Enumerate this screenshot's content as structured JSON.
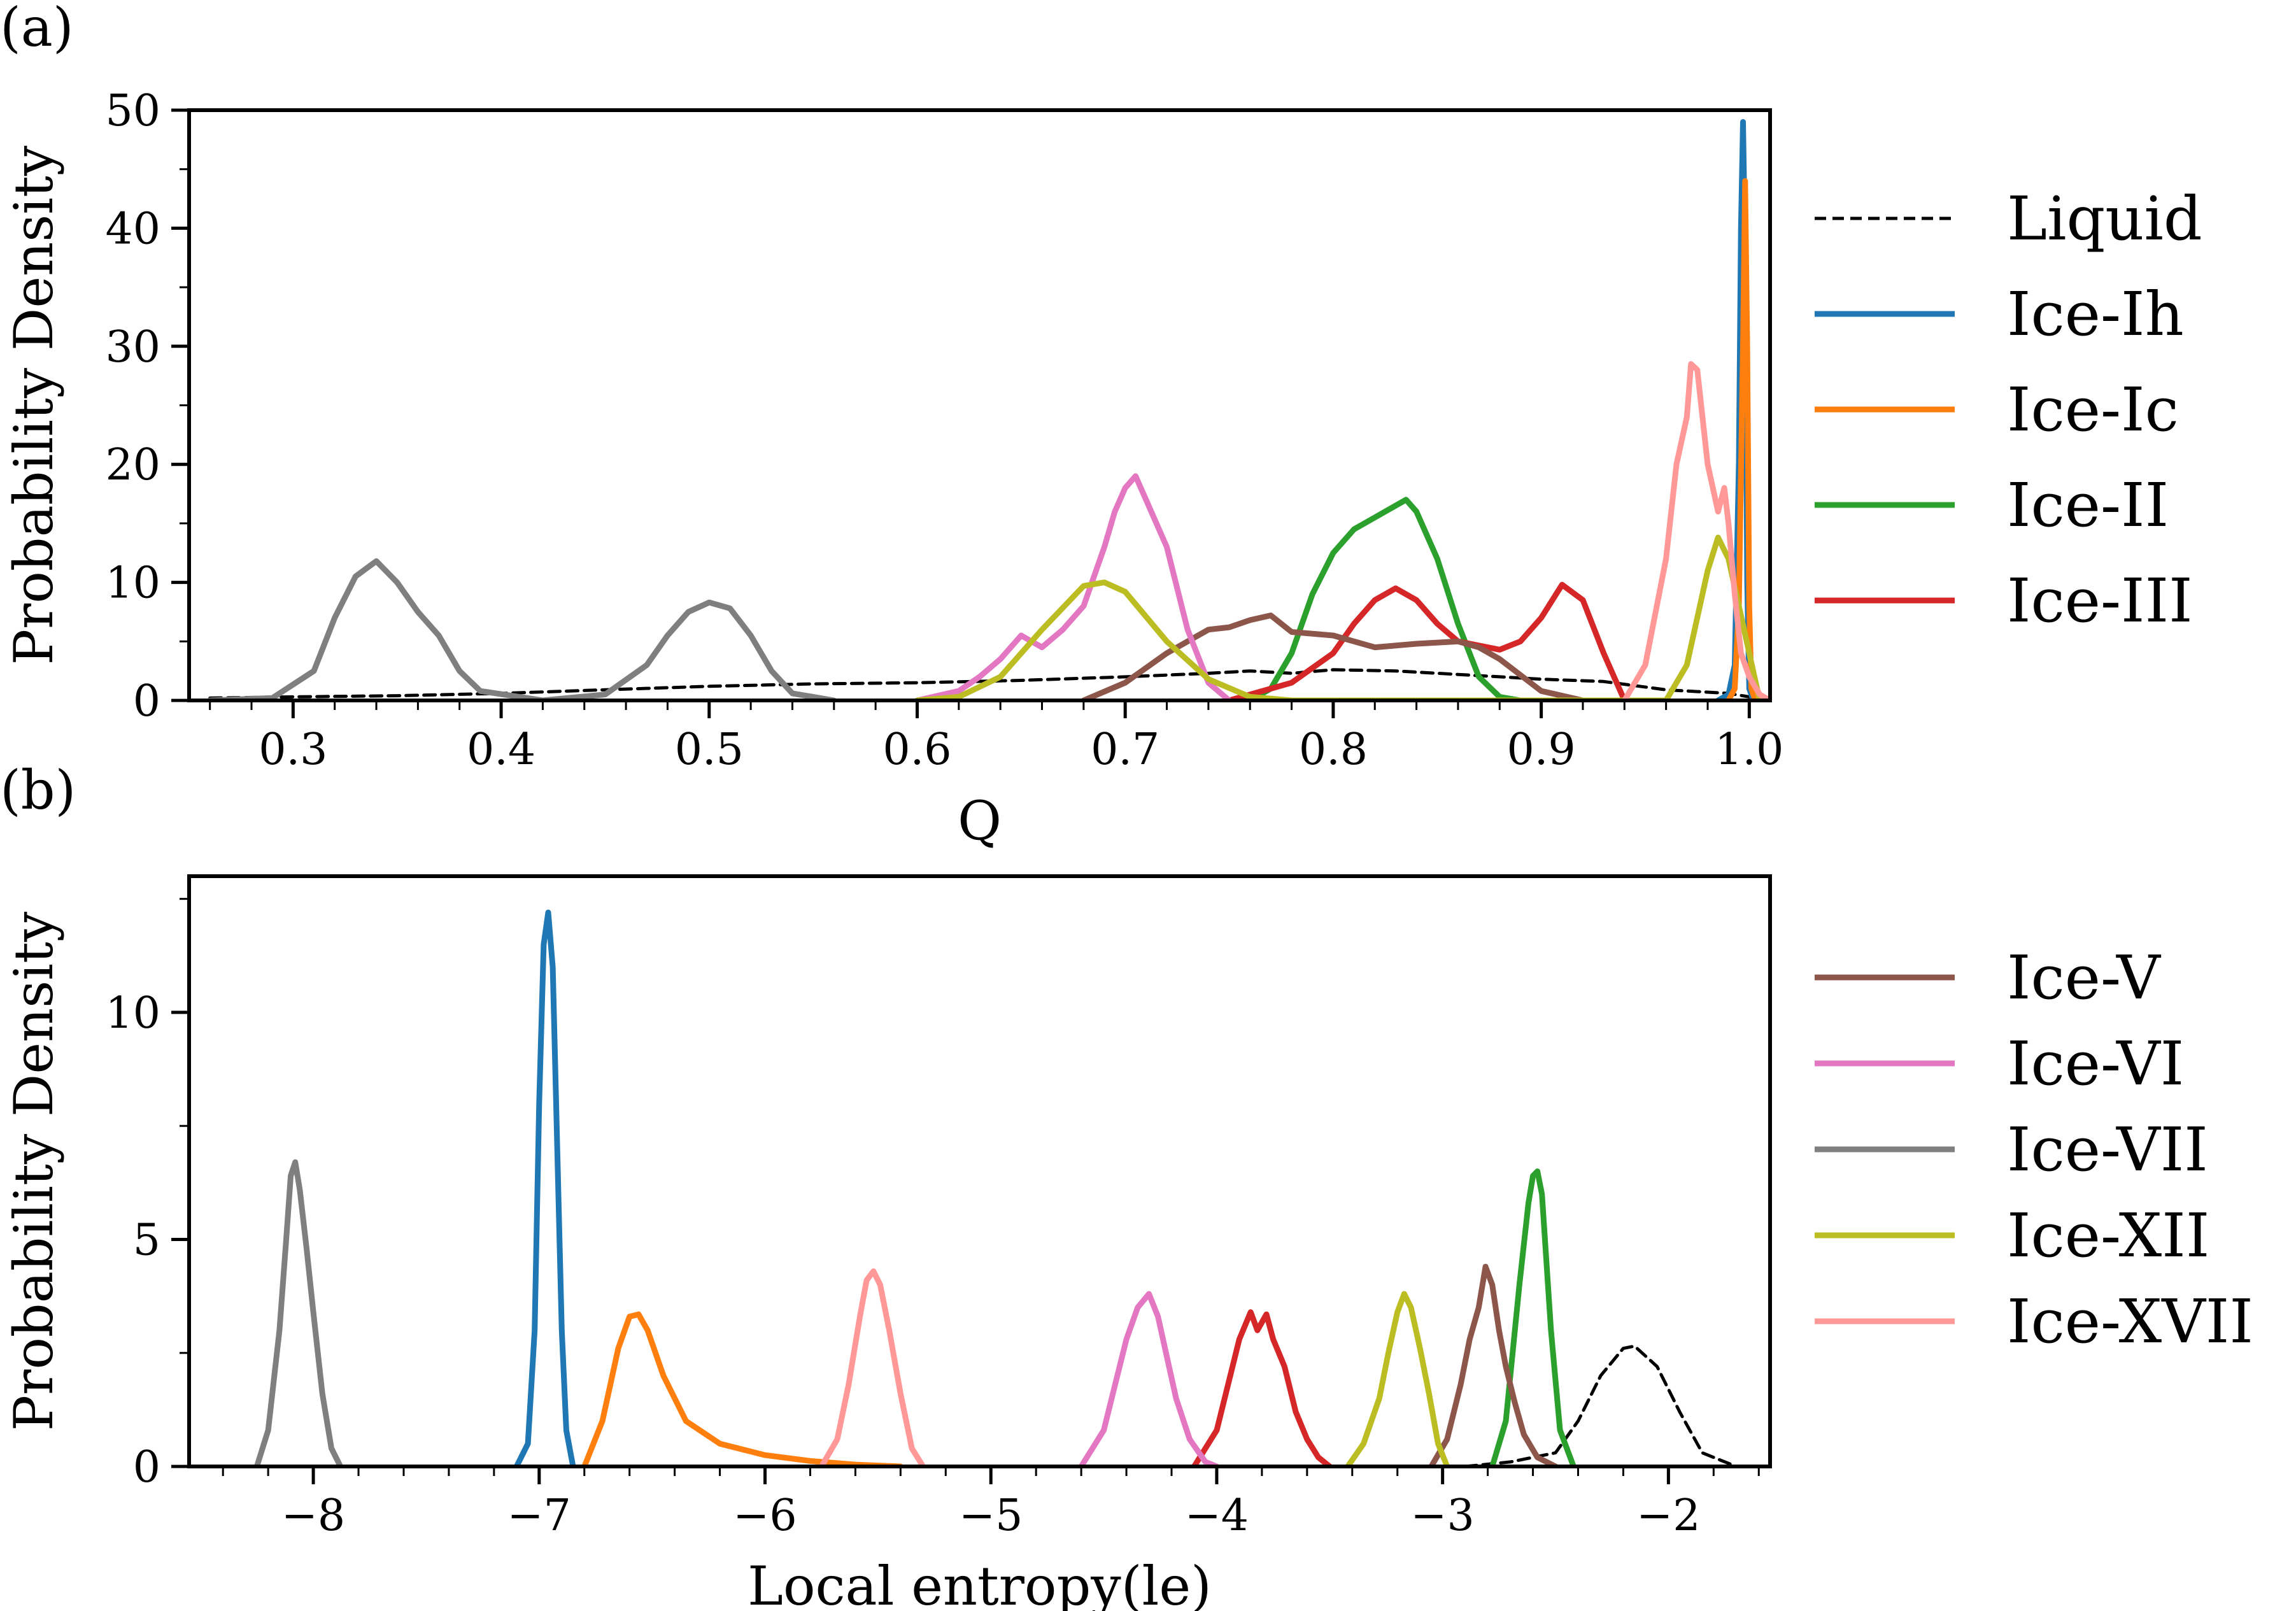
{
  "panels": [
    {
      "label": "(a)"
    },
    {
      "label": "(b)"
    }
  ],
  "chart_data": [
    {
      "type": "line",
      "panel": "(a)",
      "xlabel": "Q",
      "ylabel": "Probability Density",
      "xlim": [
        0.25,
        1.01
      ],
      "ylim": [
        0,
        50
      ],
      "xticks": [
        0.3,
        0.4,
        0.5,
        0.6,
        0.7,
        0.8,
        0.9,
        1.0
      ],
      "xtick_labels": [
        "0.3",
        "0.4",
        "0.5",
        "0.6",
        "0.7",
        "0.8",
        "0.9",
        "1.0"
      ],
      "yticks": [
        0,
        10,
        20,
        30,
        40,
        50
      ],
      "ytick_labels": [
        "0",
        "10",
        "20",
        "30",
        "40",
        "50"
      ],
      "legend": {
        "placement": "outside-right",
        "entries": [
          "Liquid",
          "Ice-Ih",
          "Ice-Ic",
          "Ice-II",
          "Ice-III"
        ]
      },
      "series": [
        {
          "name": "Liquid",
          "color": "#000000",
          "dashed": true,
          "x": [
            0.26,
            0.3,
            0.35,
            0.4,
            0.45,
            0.5,
            0.55,
            0.6,
            0.65,
            0.7,
            0.74,
            0.76,
            0.78,
            0.8,
            0.83,
            0.86,
            0.88,
            0.9,
            0.93,
            0.96,
            0.99,
            1.0
          ],
          "y": [
            0.2,
            0.3,
            0.4,
            0.6,
            0.9,
            1.2,
            1.4,
            1.5,
            1.7,
            2.0,
            2.3,
            2.5,
            2.3,
            2.6,
            2.5,
            2.2,
            2.0,
            1.8,
            1.6,
            0.9,
            0.6,
            0.3
          ]
        },
        {
          "name": "Ice-Ih",
          "color": "#1f77b4",
          "x": [
            0.985,
            0.99,
            0.993,
            0.995,
            0.996,
            0.997,
            0.998,
            0.999,
            1.0,
            1.002
          ],
          "y": [
            0,
            0.5,
            3,
            20,
            40,
            49,
            38,
            10,
            1,
            0
          ]
        },
        {
          "name": "Ice-Ic",
          "color": "#ff7f0e",
          "x": [
            0.99,
            0.993,
            0.995,
            0.997,
            0.998,
            0.999,
            1.0,
            1.001,
            1.003
          ],
          "y": [
            0,
            1,
            8,
            30,
            44,
            30,
            8,
            1,
            0
          ]
        },
        {
          "name": "Ice-II",
          "color": "#2ca02c",
          "x": [
            0.76,
            0.77,
            0.78,
            0.79,
            0.8,
            0.81,
            0.82,
            0.83,
            0.835,
            0.84,
            0.85,
            0.86,
            0.87,
            0.88,
            0.89
          ],
          "y": [
            0,
            1,
            4,
            9,
            12.5,
            14.5,
            15.5,
            16.5,
            17,
            16,
            12,
            6.5,
            2,
            0.3,
            0
          ]
        },
        {
          "name": "Ice-III",
          "color": "#d62728",
          "x": [
            0.75,
            0.78,
            0.8,
            0.81,
            0.82,
            0.83,
            0.84,
            0.85,
            0.86,
            0.88,
            0.89,
            0.9,
            0.91,
            0.92,
            0.93,
            0.94
          ],
          "y": [
            0,
            1.5,
            4,
            6.5,
            8.5,
            9.5,
            8.5,
            6.5,
            5,
            4.3,
            5,
            7,
            9.8,
            8.5,
            4,
            0
          ]
        },
        {
          "name": "Ice-V",
          "color": "#8c564b",
          "x": [
            0.68,
            0.7,
            0.72,
            0.73,
            0.74,
            0.75,
            0.76,
            0.77,
            0.78,
            0.8,
            0.82,
            0.84,
            0.86,
            0.87,
            0.88,
            0.9,
            0.92
          ],
          "y": [
            0,
            1.5,
            4,
            5,
            6,
            6.2,
            6.8,
            7.2,
            5.8,
            5.5,
            4.5,
            4.8,
            5,
            4.5,
            3.5,
            0.8,
            0
          ]
        },
        {
          "name": "Ice-VI",
          "color": "#e377c2",
          "x": [
            0.6,
            0.62,
            0.63,
            0.64,
            0.65,
            0.66,
            0.67,
            0.68,
            0.69,
            0.695,
            0.7,
            0.705,
            0.71,
            0.72,
            0.73,
            0.74,
            0.75
          ],
          "y": [
            0,
            0.8,
            2,
            3.5,
            5.5,
            4.5,
            6,
            8,
            13,
            16,
            18,
            19,
            17,
            13,
            6,
            1.5,
            0
          ]
        },
        {
          "name": "Ice-VII",
          "color": "#7f7f7f",
          "x": [
            0.26,
            0.29,
            0.31,
            0.32,
            0.33,
            0.34,
            0.35,
            0.36,
            0.37,
            0.38,
            0.39,
            0.42,
            0.45,
            0.47,
            0.48,
            0.49,
            0.5,
            0.51,
            0.52,
            0.53,
            0.54,
            0.56
          ],
          "y": [
            0,
            0.2,
            2.5,
            7,
            10.5,
            11.8,
            10,
            7.5,
            5.5,
            2.5,
            0.8,
            0,
            0.5,
            3,
            5.5,
            7.5,
            8.3,
            7.8,
            5.5,
            2.5,
            0.6,
            0
          ]
        },
        {
          "name": "Ice-XII",
          "color": "#bcbd22",
          "x": [
            0.6,
            0.62,
            0.64,
            0.66,
            0.68,
            0.69,
            0.7,
            0.72,
            0.74,
            0.76,
            0.78,
            0.96,
            0.97,
            0.98,
            0.985,
            0.99,
            1.0,
            1.005
          ],
          "y": [
            0,
            0.3,
            2,
            6,
            9.7,
            10,
            9.2,
            5,
            1.8,
            0.3,
            0,
            0,
            3,
            11,
            13.8,
            12,
            4,
            0
          ]
        },
        {
          "name": "Ice-XVII",
          "color": "#ff9896",
          "x": [
            0.94,
            0.95,
            0.96,
            0.965,
            0.97,
            0.972,
            0.975,
            0.98,
            0.985,
            0.988,
            0.99,
            0.993,
            0.996,
            1.0,
            1.005,
            1.01
          ],
          "y": [
            0,
            3,
            12,
            20,
            24,
            28.5,
            28,
            20,
            16,
            18,
            15,
            9,
            4,
            2,
            0.5,
            0
          ]
        }
      ]
    },
    {
      "type": "line",
      "panel": "(b)",
      "xlabel": "Local entropy(le)",
      "ylabel": "Probability Density",
      "xlim": [
        -8.55,
        -1.55
      ],
      "ylim": [
        0,
        13
      ],
      "xticks": [
        -8,
        -7,
        -6,
        -5,
        -4,
        -3,
        -2
      ],
      "xtick_labels": [
        "−8",
        "−7",
        "−6",
        "−5",
        "−4",
        "−3",
        "−2"
      ],
      "yticks": [
        0,
        5,
        10
      ],
      "ytick_labels": [
        "0",
        "5",
        "10"
      ],
      "legend": {
        "placement": "outside-right",
        "entries": [
          "Ice-V",
          "Ice-VI",
          "Ice-VII",
          "Ice-XII",
          "Ice-XVII"
        ]
      },
      "series": [
        {
          "name": "Liquid",
          "color": "#000000",
          "dashed": true,
          "x": [
            -2.9,
            -2.7,
            -2.5,
            -2.4,
            -2.3,
            -2.2,
            -2.15,
            -2.05,
            -1.95,
            -1.85,
            -1.7
          ],
          "y": [
            0,
            0.1,
            0.3,
            1.0,
            2.0,
            2.6,
            2.65,
            2.2,
            1.2,
            0.3,
            0
          ]
        },
        {
          "name": "Ice-Ih",
          "color": "#1f77b4",
          "x": [
            -7.1,
            -7.05,
            -7.02,
            -7.0,
            -6.98,
            -6.96,
            -6.94,
            -6.92,
            -6.9,
            -6.88,
            -6.85
          ],
          "y": [
            0,
            0.5,
            3,
            8,
            11.5,
            12.2,
            11,
            7,
            3,
            0.8,
            0
          ]
        },
        {
          "name": "Ice-Ic",
          "color": "#ff7f0e",
          "x": [
            -6.8,
            -6.72,
            -6.65,
            -6.6,
            -6.56,
            -6.52,
            -6.45,
            -6.35,
            -6.2,
            -6.0,
            -5.8,
            -5.6,
            -5.4
          ],
          "y": [
            0,
            1,
            2.6,
            3.3,
            3.35,
            3.0,
            2.0,
            1.0,
            0.5,
            0.25,
            0.12,
            0.04,
            0
          ]
        },
        {
          "name": "Ice-II",
          "color": "#2ca02c",
          "x": [
            -2.78,
            -2.72,
            -2.66,
            -2.62,
            -2.6,
            -2.58,
            -2.56,
            -2.52,
            -2.48,
            -2.42
          ],
          "y": [
            0,
            1,
            4,
            5.8,
            6.4,
            6.5,
            6.0,
            3,
            0.8,
            0
          ]
        },
        {
          "name": "Ice-III",
          "color": "#d62728",
          "x": [
            -4.1,
            -4.0,
            -3.95,
            -3.9,
            -3.85,
            -3.82,
            -3.78,
            -3.75,
            -3.7,
            -3.65,
            -3.6,
            -3.55,
            -3.5
          ],
          "y": [
            0,
            0.8,
            1.8,
            2.8,
            3.4,
            3.0,
            3.35,
            2.8,
            2.2,
            1.2,
            0.6,
            0.2,
            0
          ]
        },
        {
          "name": "Ice-V",
          "color": "#8c564b",
          "x": [
            -3.05,
            -2.98,
            -2.92,
            -2.88,
            -2.84,
            -2.81,
            -2.78,
            -2.75,
            -2.72,
            -2.68,
            -2.64,
            -2.58,
            -2.5
          ],
          "y": [
            0,
            0.6,
            1.8,
            2.8,
            3.5,
            4.4,
            4.0,
            3.0,
            2.2,
            1.4,
            0.7,
            0.2,
            0
          ]
        },
        {
          "name": "Ice-VI",
          "color": "#e377c2",
          "x": [
            -4.6,
            -4.5,
            -4.45,
            -4.4,
            -4.35,
            -4.3,
            -4.26,
            -4.22,
            -4.18,
            -4.12,
            -4.05,
            -4.0
          ],
          "y": [
            0,
            0.8,
            1.8,
            2.8,
            3.5,
            3.8,
            3.3,
            2.4,
            1.5,
            0.6,
            0.1,
            0
          ]
        },
        {
          "name": "Ice-VII",
          "color": "#7f7f7f",
          "x": [
            -8.25,
            -8.2,
            -8.15,
            -8.12,
            -8.1,
            -8.08,
            -8.06,
            -8.03,
            -8.0,
            -7.96,
            -7.92,
            -7.88
          ],
          "y": [
            0,
            0.8,
            3,
            5,
            6.4,
            6.7,
            6.1,
            4.8,
            3.4,
            1.6,
            0.4,
            0
          ]
        },
        {
          "name": "Ice-XII",
          "color": "#bcbd22",
          "x": [
            -3.42,
            -3.35,
            -3.28,
            -3.24,
            -3.2,
            -3.17,
            -3.14,
            -3.1,
            -3.06,
            -3.02,
            -2.98
          ],
          "y": [
            0,
            0.5,
            1.5,
            2.5,
            3.4,
            3.8,
            3.5,
            2.6,
            1.6,
            0.5,
            0
          ]
        },
        {
          "name": "Ice-XVII",
          "color": "#ff9896",
          "x": [
            -5.75,
            -5.68,
            -5.63,
            -5.58,
            -5.55,
            -5.52,
            -5.49,
            -5.45,
            -5.4,
            -5.35,
            -5.3
          ],
          "y": [
            0,
            0.6,
            1.8,
            3.3,
            4.1,
            4.3,
            4.0,
            3.0,
            1.6,
            0.4,
            0
          ]
        }
      ]
    }
  ]
}
